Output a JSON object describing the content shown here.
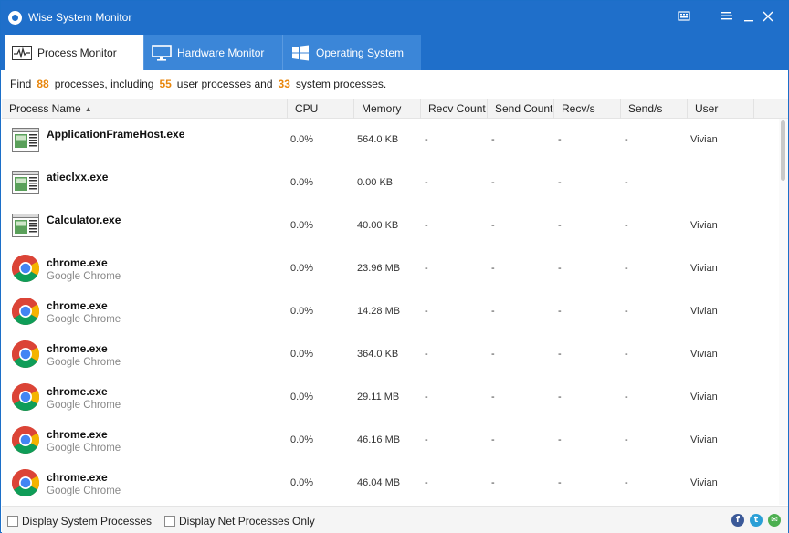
{
  "window": {
    "title": "Wise System Monitor"
  },
  "tabs": [
    {
      "label": "Process Monitor",
      "icon": "pulse-chart-icon",
      "active": true
    },
    {
      "label": "Hardware Monitor",
      "icon": "monitor-icon",
      "active": false
    },
    {
      "label": "Operating System",
      "icon": "windows-logo-icon",
      "active": false
    }
  ],
  "summary": {
    "find": "Find",
    "total": "88",
    "text1": "processes, including",
    "user": "55",
    "text2": "user processes and",
    "system": "33",
    "text3": "system processes."
  },
  "columns": {
    "process_name": "Process Name",
    "cpu": "CPU",
    "memory": "Memory",
    "recv_count": "Recv Count",
    "send_count": "Send Count",
    "recv_s": "Recv/s",
    "send_s": "Send/s",
    "user": "User"
  },
  "processes": [
    {
      "name": "ApplicationFrameHost.exe",
      "desc": "",
      "icon": "app-window-icon",
      "cpu": "0.0%",
      "memory": "564.0 KB",
      "recv_count": "-",
      "send_count": "-",
      "recv_s": "-",
      "send_s": "-",
      "user": "Vivian"
    },
    {
      "name": "atieclxx.exe",
      "desc": "",
      "icon": "app-window-icon",
      "cpu": "0.0%",
      "memory": "0.00 KB",
      "recv_count": "-",
      "send_count": "-",
      "recv_s": "-",
      "send_s": "-",
      "user": ""
    },
    {
      "name": "Calculator.exe",
      "desc": "",
      "icon": "app-window-icon",
      "cpu": "0.0%",
      "memory": "40.00 KB",
      "recv_count": "-",
      "send_count": "-",
      "recv_s": "-",
      "send_s": "-",
      "user": "Vivian"
    },
    {
      "name": "chrome.exe",
      "desc": "Google Chrome",
      "icon": "chrome-icon",
      "cpu": "0.0%",
      "memory": "23.96 MB",
      "recv_count": "-",
      "send_count": "-",
      "recv_s": "-",
      "send_s": "-",
      "user": "Vivian"
    },
    {
      "name": "chrome.exe",
      "desc": "Google Chrome",
      "icon": "chrome-icon",
      "cpu": "0.0%",
      "memory": "14.28 MB",
      "recv_count": "-",
      "send_count": "-",
      "recv_s": "-",
      "send_s": "-",
      "user": "Vivian"
    },
    {
      "name": "chrome.exe",
      "desc": "Google Chrome",
      "icon": "chrome-icon",
      "cpu": "0.0%",
      "memory": "364.0 KB",
      "recv_count": "-",
      "send_count": "-",
      "recv_s": "-",
      "send_s": "-",
      "user": "Vivian"
    },
    {
      "name": "chrome.exe",
      "desc": "Google Chrome",
      "icon": "chrome-icon",
      "cpu": "0.0%",
      "memory": "29.11 MB",
      "recv_count": "-",
      "send_count": "-",
      "recv_s": "-",
      "send_s": "-",
      "user": "Vivian"
    },
    {
      "name": "chrome.exe",
      "desc": "Google Chrome",
      "icon": "chrome-icon",
      "cpu": "0.0%",
      "memory": "46.16 MB",
      "recv_count": "-",
      "send_count": "-",
      "recv_s": "-",
      "send_s": "-",
      "user": "Vivian"
    },
    {
      "name": "chrome.exe",
      "desc": "Google Chrome",
      "icon": "chrome-icon",
      "cpu": "0.0%",
      "memory": "46.04 MB",
      "recv_count": "-",
      "send_count": "-",
      "recv_s": "-",
      "send_s": "-",
      "user": "Vivian"
    }
  ],
  "footer": {
    "display_system": "Display System Processes",
    "display_net": "Display Net Processes Only",
    "social": [
      {
        "icon": "facebook-icon",
        "glyph": "f",
        "color": "#3b5998"
      },
      {
        "icon": "twitter-icon",
        "glyph": "t",
        "color": "#2a9fd6"
      },
      {
        "icon": "email-icon",
        "glyph": "✉",
        "color": "#4caf50"
      }
    ]
  },
  "colors": {
    "accent": "#1f6fca",
    "highlight_number": "#e8860c"
  }
}
